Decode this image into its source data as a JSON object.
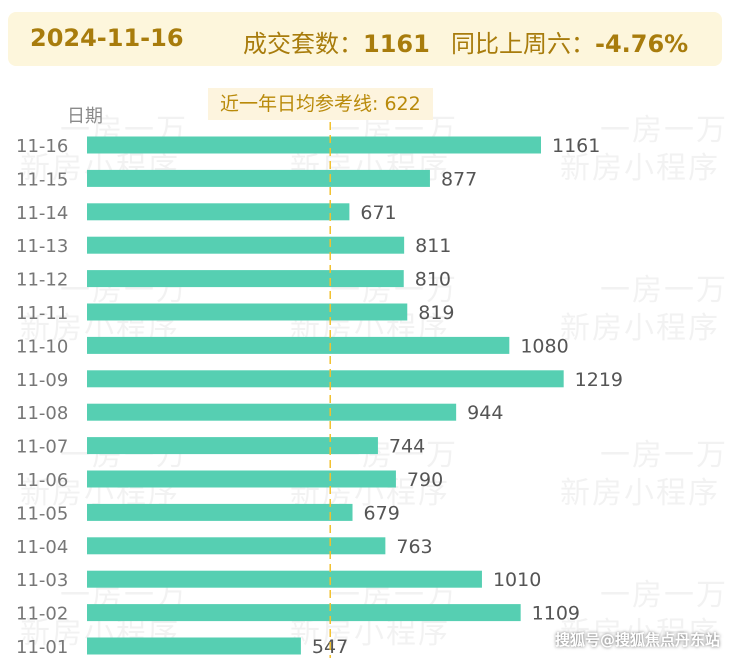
{
  "header": {
    "date": "2024-11-16",
    "deal_label": "成交套数：",
    "deal_value": "1161",
    "yoy_label": "同比上周六：",
    "yoy_value": "-4.76%"
  },
  "watermark": {
    "line1": "一房一万",
    "line2": "新房小程序",
    "footer": "搜狐号@搜狐焦点丹东站"
  },
  "chart_data": {
    "type": "bar",
    "orientation": "horizontal",
    "ylabel": "日期",
    "categories": [
      "11-16",
      "11-15",
      "11-14",
      "11-13",
      "11-12",
      "11-11",
      "11-10",
      "11-09",
      "11-08",
      "11-07",
      "11-06",
      "11-05",
      "11-04",
      "11-03",
      "11-02",
      "11-01"
    ],
    "values": [
      1161,
      877,
      671,
      811,
      810,
      819,
      1080,
      1219,
      944,
      744,
      790,
      679,
      763,
      1010,
      1109,
      547
    ],
    "reference_line": {
      "label": "近一年日均参考线: 622",
      "value": 622
    },
    "xlim": [
      0,
      1219
    ],
    "bar_color": "#56cfb2",
    "ref_color": "#f2c12e",
    "grid": false
  }
}
